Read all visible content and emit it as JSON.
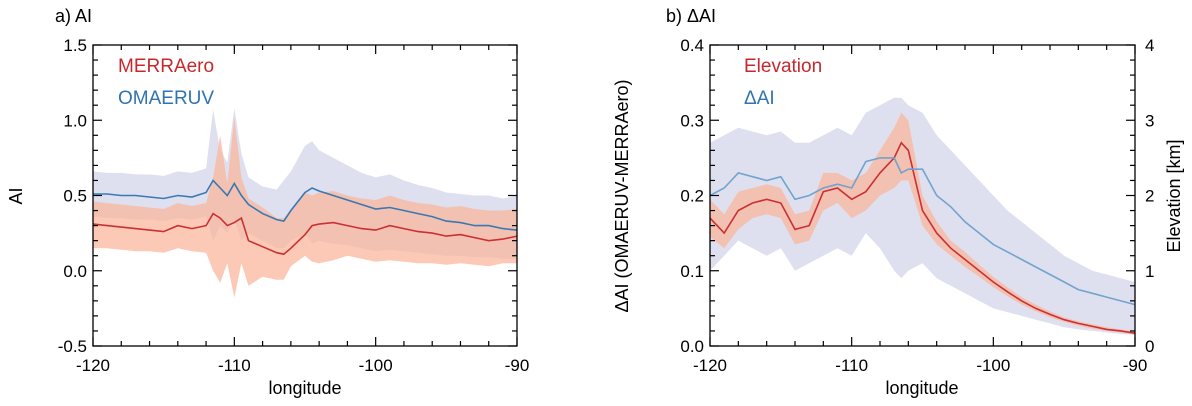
{
  "colors": {
    "red": "#c8282d",
    "blue": "#2f74b1",
    "blue_light": "#6aa0cc",
    "band_red": "#f9b79c",
    "band_blue": "#c9cce5"
  },
  "chart_data": [
    {
      "type": "line",
      "title": "a) AI",
      "xlabel": "longitude",
      "ylabel": "AI",
      "xlim": [
        -120,
        -90
      ],
      "ylim": [
        -0.5,
        1.5
      ],
      "xticks": [
        "-120",
        "-110",
        "-100",
        "-90"
      ],
      "yticks": [
        "-0.5",
        "0.0",
        "0.5",
        "1.0",
        "1.5"
      ],
      "legend": [
        "MERRAero",
        "OMAERUV"
      ],
      "legend_position": "top-left",
      "x": [
        -120,
        -119,
        -118,
        -117,
        -116,
        -115,
        -114,
        -113,
        -112,
        -111.5,
        -111,
        -110.5,
        -110,
        -109.5,
        -109,
        -108,
        -107,
        -106.5,
        -106,
        -105,
        -104.5,
        -104,
        -103,
        -102,
        -101,
        -100,
        -99,
        -98,
        -97,
        -96,
        -95,
        -94,
        -93,
        -92,
        -91,
        -90
      ],
      "series": [
        {
          "name": "MERRAero",
          "color": "red",
          "mean": [
            0.31,
            0.3,
            0.29,
            0.28,
            0.27,
            0.26,
            0.3,
            0.28,
            0.3,
            0.38,
            0.35,
            0.3,
            0.32,
            0.35,
            0.2,
            0.16,
            0.12,
            0.11,
            0.15,
            0.24,
            0.3,
            0.31,
            0.32,
            0.3,
            0.28,
            0.27,
            0.3,
            0.28,
            0.26,
            0.25,
            0.23,
            0.24,
            0.22,
            0.2,
            0.21,
            0.23
          ],
          "lower": [
            0.15,
            0.15,
            0.14,
            0.13,
            0.13,
            0.12,
            0.15,
            0.13,
            0.12,
            0.0,
            -0.08,
            0.05,
            -0.18,
            0.05,
            -0.1,
            -0.04,
            -0.06,
            -0.06,
            0.03,
            0.1,
            0.06,
            0.05,
            0.07,
            0.1,
            0.08,
            0.06,
            0.07,
            0.06,
            0.05,
            0.05,
            0.04,
            0.05,
            0.04,
            0.03,
            0.05,
            0.05
          ],
          "upper": [
            0.46,
            0.45,
            0.44,
            0.43,
            0.42,
            0.41,
            0.45,
            0.43,
            0.45,
            0.62,
            0.9,
            0.58,
            1.02,
            0.62,
            0.48,
            0.42,
            0.35,
            0.35,
            0.4,
            0.52,
            0.5,
            0.52,
            0.53,
            0.5,
            0.48,
            0.47,
            0.5,
            0.47,
            0.45,
            0.44,
            0.42,
            0.43,
            0.41,
            0.4,
            0.4,
            0.41
          ]
        },
        {
          "name": "OMAERUV",
          "color": "blue",
          "mean": [
            0.51,
            0.51,
            0.5,
            0.5,
            0.49,
            0.48,
            0.5,
            0.49,
            0.52,
            0.6,
            0.55,
            0.5,
            0.58,
            0.5,
            0.44,
            0.38,
            0.34,
            0.33,
            0.4,
            0.52,
            0.55,
            0.53,
            0.5,
            0.47,
            0.44,
            0.41,
            0.42,
            0.4,
            0.38,
            0.36,
            0.33,
            0.32,
            0.3,
            0.3,
            0.28,
            0.27
          ],
          "lower": [
            0.36,
            0.35,
            0.35,
            0.34,
            0.34,
            0.33,
            0.35,
            0.34,
            0.36,
            0.2,
            0.3,
            0.25,
            0.35,
            0.2,
            0.25,
            0.2,
            0.15,
            0.15,
            0.2,
            0.25,
            0.18,
            0.2,
            0.18,
            0.17,
            0.15,
            0.13,
            0.14,
            0.13,
            0.12,
            0.11,
            0.1,
            0.1,
            0.09,
            0.09,
            0.08,
            0.08
          ],
          "upper": [
            0.66,
            0.65,
            0.65,
            0.64,
            0.64,
            0.63,
            0.66,
            0.65,
            0.68,
            1.07,
            0.8,
            0.72,
            1.08,
            0.78,
            0.62,
            0.56,
            0.54,
            0.6,
            0.66,
            0.83,
            0.86,
            0.8,
            0.75,
            0.7,
            0.65,
            0.62,
            0.64,
            0.6,
            0.57,
            0.55,
            0.52,
            0.51,
            0.5,
            0.5,
            0.48,
            0.5
          ]
        }
      ]
    },
    {
      "type": "line",
      "title": "b) ΔAI",
      "xlabel": "longitude",
      "ylabel": "ΔAI (OMAERUV-MERRAero)",
      "ylabel_right": "Elevation [km]",
      "xlim": [
        -120,
        -90
      ],
      "ylim": [
        0.0,
        0.4
      ],
      "ylim_right": [
        0,
        4
      ],
      "xticks": [
        "-120",
        "-110",
        "-100",
        "-90"
      ],
      "yticks": [
        "0.0",
        "0.1",
        "0.2",
        "0.3",
        "0.4"
      ],
      "yticks_right": [
        "0",
        "1",
        "2",
        "3",
        "4"
      ],
      "legend": [
        "Elevation",
        "ΔAI"
      ],
      "legend_position": "top-left",
      "x": [
        -120,
        -119,
        -118,
        -117,
        -116,
        -115,
        -114,
        -113,
        -112,
        -111,
        -110,
        -109,
        -108,
        -107,
        -106.5,
        -106,
        -105,
        -104,
        -103,
        -102,
        -101,
        -100,
        -99,
        -98,
        -97,
        -96,
        -95,
        -94,
        -93,
        -92,
        -91,
        -90
      ],
      "series": [
        {
          "name": "Elevation",
          "color": "red",
          "axis": "right",
          "mean": [
            1.7,
            1.5,
            1.8,
            1.9,
            1.95,
            1.9,
            1.55,
            1.6,
            2.05,
            2.1,
            1.95,
            2.05,
            2.3,
            2.5,
            2.7,
            2.6,
            1.8,
            1.5,
            1.3,
            1.15,
            1.0,
            0.85,
            0.72,
            0.6,
            0.5,
            0.42,
            0.35,
            0.3,
            0.26,
            0.22,
            0.2,
            0.17
          ],
          "lower": [
            1.45,
            1.3,
            1.55,
            1.7,
            1.75,
            1.7,
            1.35,
            1.4,
            1.8,
            1.9,
            1.7,
            1.8,
            2.0,
            2.1,
            2.2,
            2.2,
            1.6,
            1.35,
            1.2,
            1.05,
            0.92,
            0.78,
            0.66,
            0.55,
            0.46,
            0.38,
            0.32,
            0.27,
            0.23,
            0.2,
            0.18,
            0.15
          ],
          "upper": [
            1.95,
            1.75,
            2.05,
            2.1,
            2.15,
            2.1,
            1.75,
            1.8,
            2.3,
            2.3,
            2.2,
            2.3,
            2.6,
            2.9,
            3.1,
            3.0,
            2.0,
            1.65,
            1.4,
            1.25,
            1.08,
            0.92,
            0.78,
            0.65,
            0.55,
            0.46,
            0.38,
            0.33,
            0.29,
            0.25,
            0.22,
            0.19
          ]
        },
        {
          "name": "ΔAI",
          "color": "blue_light",
          "axis": "left",
          "mean": [
            0.2,
            0.21,
            0.23,
            0.225,
            0.22,
            0.225,
            0.195,
            0.2,
            0.21,
            0.215,
            0.21,
            0.245,
            0.25,
            0.25,
            0.23,
            0.235,
            0.235,
            0.2,
            0.185,
            0.165,
            0.15,
            0.135,
            0.125,
            0.115,
            0.105,
            0.095,
            0.085,
            0.075,
            0.07,
            0.065,
            0.06,
            0.055
          ],
          "lower": [
            0.1,
            0.12,
            0.14,
            0.13,
            0.12,
            0.13,
            0.1,
            0.11,
            0.12,
            0.13,
            0.12,
            0.15,
            0.13,
            0.1,
            0.09,
            0.1,
            0.11,
            0.09,
            0.08,
            0.07,
            0.06,
            0.05,
            0.045,
            0.04,
            0.035,
            0.03,
            0.025,
            0.022,
            0.02,
            0.018,
            0.016,
            0.015
          ],
          "upper": [
            0.27,
            0.28,
            0.29,
            0.285,
            0.28,
            0.285,
            0.27,
            0.27,
            0.28,
            0.29,
            0.28,
            0.31,
            0.32,
            0.33,
            0.33,
            0.32,
            0.31,
            0.28,
            0.26,
            0.24,
            0.22,
            0.2,
            0.18,
            0.165,
            0.15,
            0.135,
            0.12,
            0.11,
            0.1,
            0.095,
            0.09,
            0.085
          ]
        }
      ]
    }
  ]
}
